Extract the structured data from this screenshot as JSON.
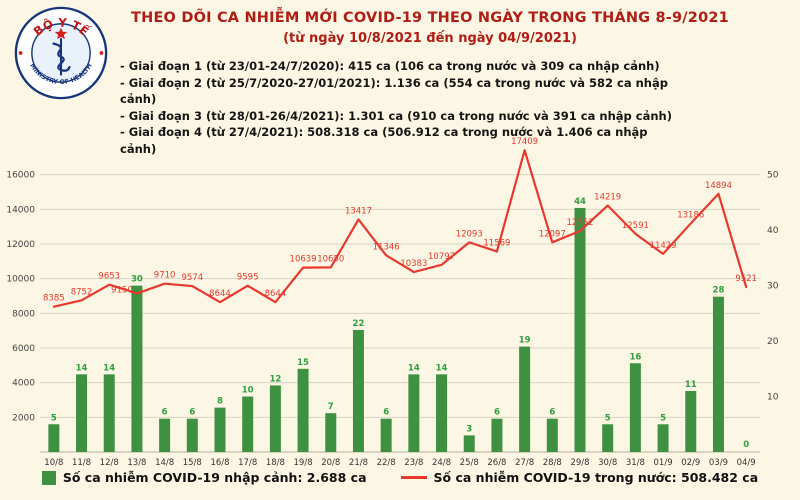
{
  "page": {
    "background": "#fcf6e4"
  },
  "logo": {
    "top_text": "BỘ Y TẾ",
    "bottom_text": "MINISTRY OF HEALTH"
  },
  "header": {
    "title": "THEO DÕI CA NHIỄM MỚI COVID-19 THEO NGÀY TRONG THÁNG 8-9/2021",
    "subtitle": "(từ ngày 10/8/2021 đến ngày 04/9/2021)",
    "bullets": [
      "- Giai đoạn 1 (từ 23/01-24/7/2020): 415 ca (106 ca trong nước và 309 ca nhập cảnh)",
      "- Giai đoạn 2 (từ 25/7/2020-27/01/2021): 1.136 ca (554 ca trong nước và 582 ca nhập cảnh)",
      "- Giai đoạn 3 (từ 28/01-26/4/2021): 1.301 ca (910 ca trong nước và 391 ca nhập cảnh)",
      "- Giai đoạn 4 (từ 27/4/2021): 508.318 ca (506.912 ca trong nước và 1.406 ca nhập cảnh)"
    ]
  },
  "chart_data": {
    "type": "bar+line combo",
    "title": "THEO DÕI CA NHIỄM MỚI COVID-19 THEO NGÀY TRONG THÁNG 8-9/2021",
    "categories": [
      "10/8",
      "11/8",
      "12/8",
      "13/8",
      "14/8",
      "15/8",
      "16/8",
      "17/8",
      "18/8",
      "19/8",
      "20/8",
      "21/8",
      "22/8",
      "23/8",
      "24/8",
      "25/8",
      "26/8",
      "27/8",
      "28/8",
      "29/8",
      "30/8",
      "31/8",
      "01/9",
      "02/9",
      "03/9",
      "04/9"
    ],
    "series": [
      {
        "name": "Số ca nhiễm COVID-19 nhập cảnh",
        "type": "bar",
        "axis": "right",
        "color": "#3f9142",
        "label_color": "#2e9e3f",
        "values": [
          5,
          14,
          14,
          30,
          6,
          6,
          8,
          10,
          12,
          15,
          7,
          22,
          6,
          14,
          14,
          3,
          6,
          19,
          6,
          44,
          5,
          16,
          5,
          11,
          28,
          0
        ]
      },
      {
        "name": "Số ca nhiễm COVID-19 trong nước",
        "type": "line",
        "axis": "left",
        "color": "#e8392e",
        "label_color": "#e8392e",
        "values": [
          8385,
          8752,
          9653,
          9150,
          9710,
          9574,
          8644,
          9595,
          8644,
          10639,
          10650,
          13417,
          11346,
          10383,
          10797,
          12093,
          11569,
          17409,
          12097,
          12752,
          14219,
          12591,
          11429,
          13186,
          14894,
          9521
        ]
      }
    ],
    "left_axis": {
      "min": 0,
      "max": 18000,
      "ticks": [
        2000,
        4000,
        6000,
        8000,
        10000,
        12000,
        14000,
        16000
      ]
    },
    "right_axis": {
      "min": 0,
      "max": 56.25,
      "ticks": [
        10,
        20,
        30,
        40,
        50
      ]
    },
    "grid": true,
    "legend_position": "bottom",
    "legend": [
      {
        "marker": "square",
        "color": "#3f9142",
        "label": "Số ca nhiễm COVID-19 nhập cảnh: 2.688 ca"
      },
      {
        "marker": "line",
        "color": "#e8392e",
        "label": "Số ca nhiễm COVID-19 trong nước: 508.482 ca"
      }
    ]
  }
}
